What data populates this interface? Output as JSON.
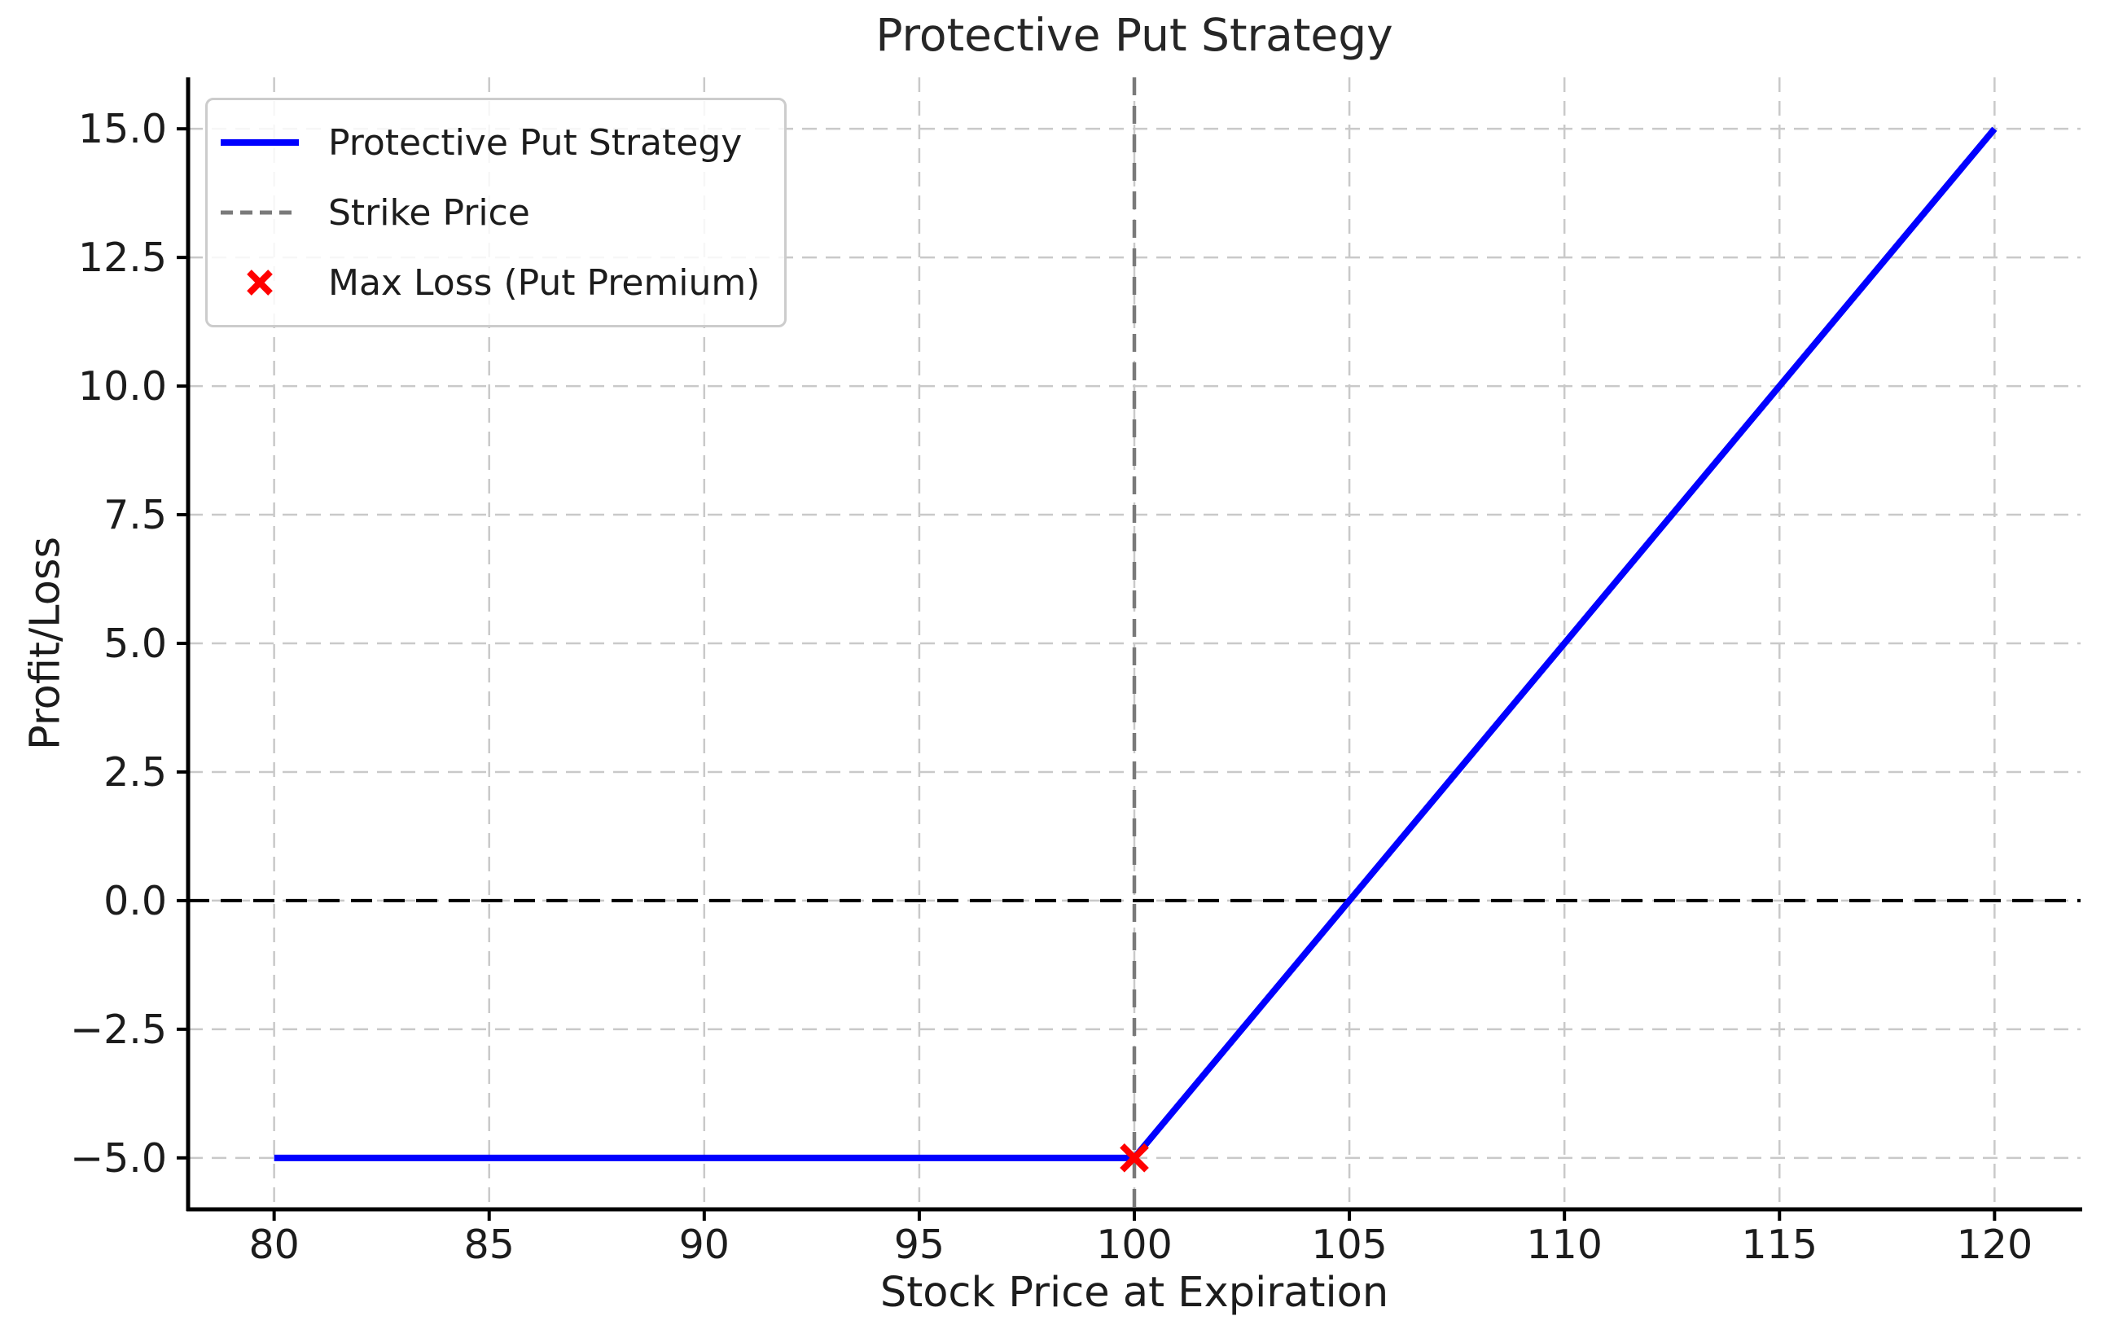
{
  "chart_data": {
    "type": "line",
    "title": "Protective Put Strategy",
    "xlabel": "Stock Price at Expiration",
    "ylabel": "Profit/Loss",
    "xlim": [
      78,
      122
    ],
    "ylim": [
      -6,
      16
    ],
    "xticks": [
      80,
      85,
      90,
      95,
      100,
      105,
      110,
      115,
      120
    ],
    "xtick_labels": [
      "80",
      "85",
      "90",
      "95",
      "100",
      "105",
      "110",
      "115",
      "120"
    ],
    "yticks": [
      -5.0,
      -2.5,
      0.0,
      2.5,
      5.0,
      7.5,
      10.0,
      12.5,
      15.0
    ],
    "ytick_labels": [
      "−5.0",
      "−2.5",
      "0.0",
      "2.5",
      "5.0",
      "7.5",
      "10.0",
      "12.5",
      "15.0"
    ],
    "grid": true,
    "grid_style": "dashed",
    "legend_position": "upper left",
    "series": [
      {
        "name": "Protective Put Strategy",
        "type": "line",
        "color": "#0000ff",
        "linestyle": "solid",
        "linewidth": 8,
        "points": [
          [
            80,
            -5
          ],
          [
            100,
            -5
          ],
          [
            120,
            15
          ]
        ]
      }
    ],
    "annotations": [
      {
        "name": "Strike Price",
        "type": "vline",
        "x": 100,
        "color": "#7a7a7a",
        "linestyle": "dashed"
      },
      {
        "name": "Zero Profit Line",
        "type": "hline",
        "y": 0,
        "color": "#000000",
        "linestyle": "dashed"
      },
      {
        "name": "Max Loss (Put Premium)",
        "type": "marker",
        "marker": "x",
        "point": [
          100,
          -5
        ],
        "color": "#ff0000"
      }
    ],
    "key_values": {
      "strike_price": 100,
      "max_loss": -5,
      "breakeven_price": 105,
      "max_shown_profit": 15
    },
    "colors": {
      "background": "#ffffff",
      "grid": "#c9c9c9",
      "spine": "#000000",
      "text": "#1c1c1c",
      "title": "#262626"
    }
  },
  "legend": {
    "items": [
      {
        "label": "Protective Put Strategy",
        "swatch": "solid-line",
        "color": "#0000ff"
      },
      {
        "label": "Strike Price",
        "swatch": "dashed-line",
        "color": "#7a7a7a"
      },
      {
        "label": "Max Loss (Put Premium)",
        "swatch": "x-marker",
        "color": "#ff0000"
      }
    ]
  }
}
